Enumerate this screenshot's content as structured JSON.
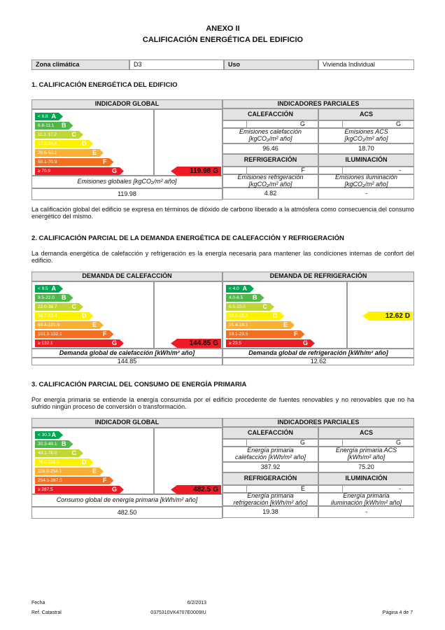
{
  "header": {
    "title": "ANEXO II",
    "subtitle": "CALIFICACIÓN ENERGÉTICA DEL EDIFICIO"
  },
  "info": {
    "zone_label": "Zona climática",
    "zone": "D3",
    "use_label": "Uso",
    "use": "Vivienda Individual"
  },
  "section1": {
    "heading": "1. CALIFICACIÓN ENERGÉTICA DEL EDIFICIO",
    "global": {
      "header": "INDICADOR GLOBAL",
      "scale": [
        {
          "range": "< 6.8",
          "letter": "A"
        },
        {
          "range": "6.8-11.1",
          "letter": "B"
        },
        {
          "range": "11.1-17.2",
          "letter": "C"
        },
        {
          "range": "17.2-26.6",
          "letter": "D"
        },
        {
          "range": "26.6-50.1",
          "letter": "E"
        },
        {
          "range": "50.1-70.9",
          "letter": "F"
        },
        {
          "range": "≥ 70.9",
          "letter": "G"
        }
      ],
      "indicator": {
        "value": "119.98",
        "letter": "G"
      },
      "caption": "Emisiones globales [kgCO₂/m² año]",
      "total": "119.98"
    },
    "partial": {
      "header": "INDICADORES PARCIALES",
      "groups": [
        {
          "name": "CALEFACCIÓN",
          "letter": "G",
          "caption": [
            "Emisiones calefacción",
            "[kgCO₂/m² año]"
          ],
          "value": "96.46"
        },
        {
          "name": "ACS",
          "letter": "G",
          "caption": [
            "Emisiones ACS",
            "[kgCO₂/m² año]"
          ],
          "value": "18.70"
        },
        {
          "name": "REFRIGERACIÓN",
          "letter": "F",
          "caption": [
            "Emisiones refrigeración",
            "[kgCO₂/m² año]"
          ],
          "value": "4.82"
        },
        {
          "name": "ILUMINACIÓN",
          "letter": "-",
          "caption": [
            "Emisiones iluminación",
            "[kgCO₂/m² año]"
          ],
          "value": "-"
        }
      ]
    },
    "note": "La calificación global del edificio se expresa en términos de dióxido de carbono liberado a la atmósfera como consecuencia del consumo energético del mismo."
  },
  "section2": {
    "heading": "2. CALIFICACIÓN PARCIAL DE LA DEMANDA ENERGÉTICA DE CALEFACCIÓN Y REFRIGERACIÓN",
    "text": "La demanda energética de calefacción y refrigeración es la energía necesaria para mantener las condiciones internas de confort del edificio.",
    "heating": {
      "header": "DEMANDA DE CALEFACCIÓN",
      "scale": [
        {
          "range": "< 9.5",
          "letter": "A"
        },
        {
          "range": "9.5-22.0",
          "letter": "B"
        },
        {
          "range": "22.0-38.7",
          "letter": "C"
        },
        {
          "range": "38.7-63.4",
          "letter": "D"
        },
        {
          "range": "63.4-101.9",
          "letter": "E"
        },
        {
          "range": "101.9-132.1",
          "letter": "F"
        },
        {
          "range": "≥ 132.1",
          "letter": "G"
        }
      ],
      "indicator": {
        "value": "144.85",
        "letter": "G"
      },
      "caption": "Demanda global de calefacción [kWh/m² año]",
      "total": "144.85"
    },
    "cooling": {
      "header": "DEMANDA DE REFRIGERACIÓN",
      "scale": [
        {
          "range": "< 4.0",
          "letter": "A"
        },
        {
          "range": "4.0-6.5",
          "letter": "B"
        },
        {
          "range": "6.5-10.0",
          "letter": "C"
        },
        {
          "range": "10.0-15.4",
          "letter": "D"
        },
        {
          "range": "15.4-19.1",
          "letter": "E"
        },
        {
          "range": "19.1-23.5",
          "letter": "F"
        },
        {
          "range": "≥ 23.5",
          "letter": "G"
        }
      ],
      "indicator": {
        "value": "12.62",
        "letter": "D"
      },
      "caption": "Demanda global de refrigeración [kWh/m² año]",
      "total": "12.62"
    }
  },
  "section3": {
    "heading": "3. CALIFICACIÓN PARCIAL DEL CONSUMO DE ENERGÍA PRIMARIA",
    "text": "Por energía primaria se entiende la energía consumida por el edificio procedente de fuentes renovables y no renovables que no ha sufrido ningún proceso de conversión o transformación.",
    "global": {
      "header": "INDICADOR GLOBAL",
      "scale": [
        {
          "range": "< 30.3",
          "letter": "A"
        },
        {
          "range": "30.3-49.1",
          "letter": "B"
        },
        {
          "range": "49.1-76.0",
          "letter": "C"
        },
        {
          "range": "76.0-116.9",
          "letter": "D"
        },
        {
          "range": "116.9-254.1",
          "letter": "E"
        },
        {
          "range": "254.1-287.5",
          "letter": "F"
        },
        {
          "range": "≥ 287.5",
          "letter": "G"
        }
      ],
      "indicator": {
        "value": "482.5",
        "letter": "G"
      },
      "caption": "Consumo global de energía primaria [kWh/m² año]",
      "total": "482.50"
    },
    "partial": {
      "header": "INDICADORES PARCIALES",
      "groups": [
        {
          "name": "CALEFACCIÓN",
          "letter": "G",
          "caption": [
            "Energía primaria",
            "calefacción [kWh/m² año]"
          ],
          "value": "387.92"
        },
        {
          "name": "ACS",
          "letter": "G",
          "caption": [
            "Energía primaria ACS",
            "[kWh/m² año]"
          ],
          "value": "75.20"
        },
        {
          "name": "REFRIGERACIÓN",
          "letter": "E",
          "caption": [
            "Energía primaria",
            "refrigeración [kWh/m² año]"
          ],
          "value": "19.38"
        },
        {
          "name": "ILUMINACIÓN",
          "letter": "-",
          "caption": [
            "Energía primaria",
            "iluminación [kWh/m² año]"
          ],
          "value": "-"
        }
      ]
    }
  },
  "footer": {
    "date_label": "Fecha",
    "date": "6/2/2013",
    "ref_label": "Ref. Catastral",
    "ref": "0375310VK4707E0009IU",
    "page": "Página 4 de 7"
  }
}
